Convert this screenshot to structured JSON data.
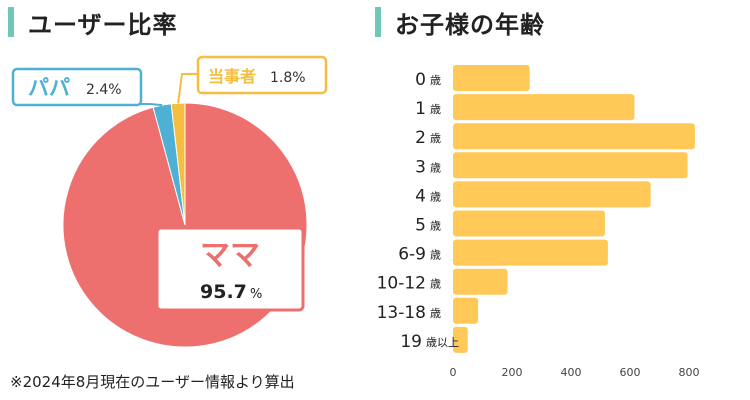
{
  "titles": {
    "left": "ユーザー比率",
    "right": "お子様の年齢"
  },
  "footnote": "※2024年8月現在のユーザー情報より算出",
  "colors": {
    "accent": "#6fc7b5",
    "mama": "#ed6f6e",
    "papa": "#4fb0d6",
    "self": "#f4be3f",
    "bar": "#ffc857"
  },
  "chart_data": [
    {
      "type": "pie",
      "slices": [
        {
          "label": "ママ",
          "value": 95.7,
          "display": "95.7",
          "unit": "%",
          "color": "#ed6f6e"
        },
        {
          "label": "パパ",
          "value": 2.4,
          "display": "2.4",
          "unit": "%",
          "color": "#4fb0d6"
        },
        {
          "label": "当事者",
          "value": 1.8,
          "display": "1.8",
          "unit": "%",
          "color": "#f4be3f"
        }
      ]
    },
    {
      "type": "bar",
      "orientation": "horizontal",
      "categories": [
        {
          "num": "0",
          "unit": "歳"
        },
        {
          "num": "1",
          "unit": "歳"
        },
        {
          "num": "2",
          "unit": "歳"
        },
        {
          "num": "3",
          "unit": "歳"
        },
        {
          "num": "4",
          "unit": "歳"
        },
        {
          "num": "5",
          "unit": "歳"
        },
        {
          "num": "6-9",
          "unit": "歳"
        },
        {
          "num": "10-12",
          "unit": "歳"
        },
        {
          "num": "13-18",
          "unit": "歳"
        },
        {
          "num": "19",
          "unit": "歳以上"
        }
      ],
      "values": [
        260,
        615,
        820,
        795,
        670,
        515,
        525,
        185,
        85,
        50
      ],
      "xlim": [
        0,
        800
      ],
      "xticks": [
        "0",
        "200",
        "400",
        "600",
        "800"
      ],
      "grid": false,
      "color": "#ffc857"
    }
  ]
}
